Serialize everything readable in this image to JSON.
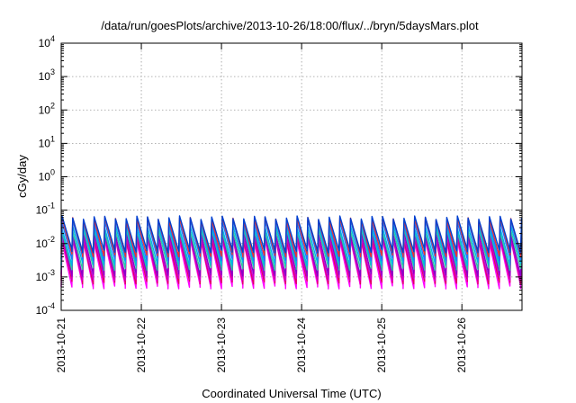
{
  "chart_data": {
    "type": "line",
    "title": "/data/run/goesPlots/archive/2013-10-26/18:00/flux/../bryn/5daysMars.plot",
    "xlabel": "Coordinated Universal Time (UTC)",
    "ylabel": "cGy/day",
    "y_scale": "log",
    "ylim": [
      0.0001,
      10000
    ],
    "xlim": [
      "2013-10-21",
      "2013-10-26 18:00"
    ],
    "x_tick_labels": [
      "2013-10-21",
      "2013-10-22",
      "2013-10-23",
      "2013-10-24",
      "2013-10-25",
      "2013-10-26"
    ],
    "y_ticks": [
      {
        "base": "10",
        "exp": "-4"
      },
      {
        "base": "10",
        "exp": "-3"
      },
      {
        "base": "10",
        "exp": "-2"
      },
      {
        "base": "10",
        "exp": "-1"
      },
      {
        "base": "10",
        "exp": "0"
      },
      {
        "base": "10",
        "exp": "1"
      },
      {
        "base": "10",
        "exp": "2"
      },
      {
        "base": "10",
        "exp": "3"
      },
      {
        "base": "10",
        "exp": "4"
      }
    ],
    "grid": true,
    "legend": "none",
    "sawtooth_cycles_per_day": 7.5,
    "series": [
      {
        "color": "#ff00ff",
        "peak": 0.012,
        "trough": 0.0005
      },
      {
        "color": "#e00060",
        "peak": 0.014,
        "trough": 0.0007
      },
      {
        "color": "#cc00cc",
        "peak": 0.016,
        "trough": 0.0009
      },
      {
        "color": "#8a00c8",
        "peak": 0.02,
        "trough": 0.0012
      },
      {
        "color": "#2ec8a0",
        "peak": 0.025,
        "trough": 0.0018
      },
      {
        "color": "#00b4e8",
        "peak": 0.032,
        "trough": 0.0025
      },
      {
        "color": "#1e78ff",
        "peak": 0.045,
        "trough": 0.0035
      },
      {
        "color": "#e83232",
        "peak": 0.055,
        "trough": 0.0045
      },
      {
        "color": "#0040d0",
        "peak": 0.06,
        "trough": 0.006
      }
    ]
  }
}
